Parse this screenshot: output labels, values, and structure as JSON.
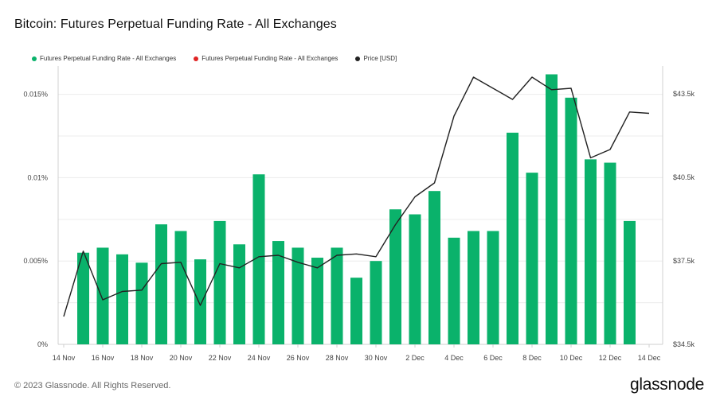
{
  "title": "Bitcoin: Futures Perpetual Funding Rate - All Exchanges",
  "legend": [
    {
      "label": "Futures Perpetual Funding Rate - All Exchanges",
      "color": "#0ab26b"
    },
    {
      "label": "Futures Perpetual Funding Rate - All Exchanges",
      "color": "#e02424"
    },
    {
      "label": "Price [USD]",
      "color": "#222222"
    }
  ],
  "footer": "© 2023 Glassnode. All Rights Reserved.",
  "brand": "glassnode",
  "chart_data": {
    "type": "bar",
    "bar_color": "#0ab26b",
    "line_color": "#222222",
    "x_tick_labels": [
      "14 Nov",
      "16 Nov",
      "18 Nov",
      "20 Nov",
      "22 Nov",
      "24 Nov",
      "26 Nov",
      "28 Nov",
      "30 Nov",
      "2 Dec",
      "4 Dec",
      "6 Dec",
      "8 Dec",
      "10 Dec",
      "12 Dec",
      "14 Dec"
    ],
    "y_left": {
      "ticks": [
        "0%",
        "0.005%",
        "0.01%",
        "0.015%"
      ],
      "tick_values": [
        0,
        0.005,
        0.01,
        0.015
      ],
      "range": [
        0,
        0.0167
      ]
    },
    "y_right": {
      "ticks": [
        "$34.5k",
        "$37.5k",
        "$40.5k",
        "$43.5k"
      ],
      "tick_values": [
        34500,
        37500,
        40500,
        43500
      ],
      "range": [
        34500,
        44500
      ]
    },
    "grid": true,
    "series": [
      {
        "name": "Futures Perpetual Funding Rate - All Exchanges",
        "axis": "left",
        "dates": [
          "15 Nov",
          "16 Nov",
          "17 Nov",
          "18 Nov",
          "19 Nov",
          "20 Nov",
          "21 Nov",
          "22 Nov",
          "23 Nov",
          "24 Nov",
          "25 Nov",
          "26 Nov",
          "27 Nov",
          "28 Nov",
          "29 Nov",
          "30 Nov",
          "1 Dec",
          "2 Dec",
          "3 Dec",
          "4 Dec",
          "5 Dec",
          "6 Dec",
          "7 Dec",
          "8 Dec",
          "9 Dec",
          "10 Dec",
          "11 Dec",
          "12 Dec",
          "13 Dec"
        ],
        "values": [
          0.0055,
          0.0058,
          0.0054,
          0.0049,
          0.0072,
          0.0068,
          0.0051,
          0.0074,
          0.006,
          0.0102,
          0.0062,
          0.0058,
          0.0052,
          0.0058,
          0.004,
          0.005,
          0.0081,
          0.0078,
          0.0092,
          0.0064,
          0.0068,
          0.0068,
          0.0127,
          0.0103,
          0.0162,
          0.0148,
          0.0111,
          0.0109,
          0.0074
        ]
      },
      {
        "name": "Price [USD]",
        "axis": "right",
        "dates": [
          "14 Nov",
          "15 Nov",
          "16 Nov",
          "17 Nov",
          "18 Nov",
          "19 Nov",
          "20 Nov",
          "21 Nov",
          "22 Nov",
          "23 Nov",
          "24 Nov",
          "25 Nov",
          "26 Nov",
          "27 Nov",
          "28 Nov",
          "29 Nov",
          "30 Nov",
          "1 Dec",
          "2 Dec",
          "3 Dec",
          "4 Dec",
          "5 Dec",
          "6 Dec",
          "7 Dec",
          "8 Dec",
          "9 Dec",
          "10 Dec",
          "11 Dec",
          "12 Dec",
          "13 Dec",
          "14 Dec"
        ],
        "values": [
          35500,
          37850,
          36100,
          36400,
          36450,
          37400,
          37450,
          35900,
          37400,
          37250,
          37650,
          37700,
          37450,
          37250,
          37700,
          37750,
          37650,
          38800,
          39800,
          40300,
          42700,
          44100,
          43700,
          43300,
          44100,
          43650,
          43700,
          41200,
          41500,
          42850,
          42800
        ]
      }
    ]
  }
}
